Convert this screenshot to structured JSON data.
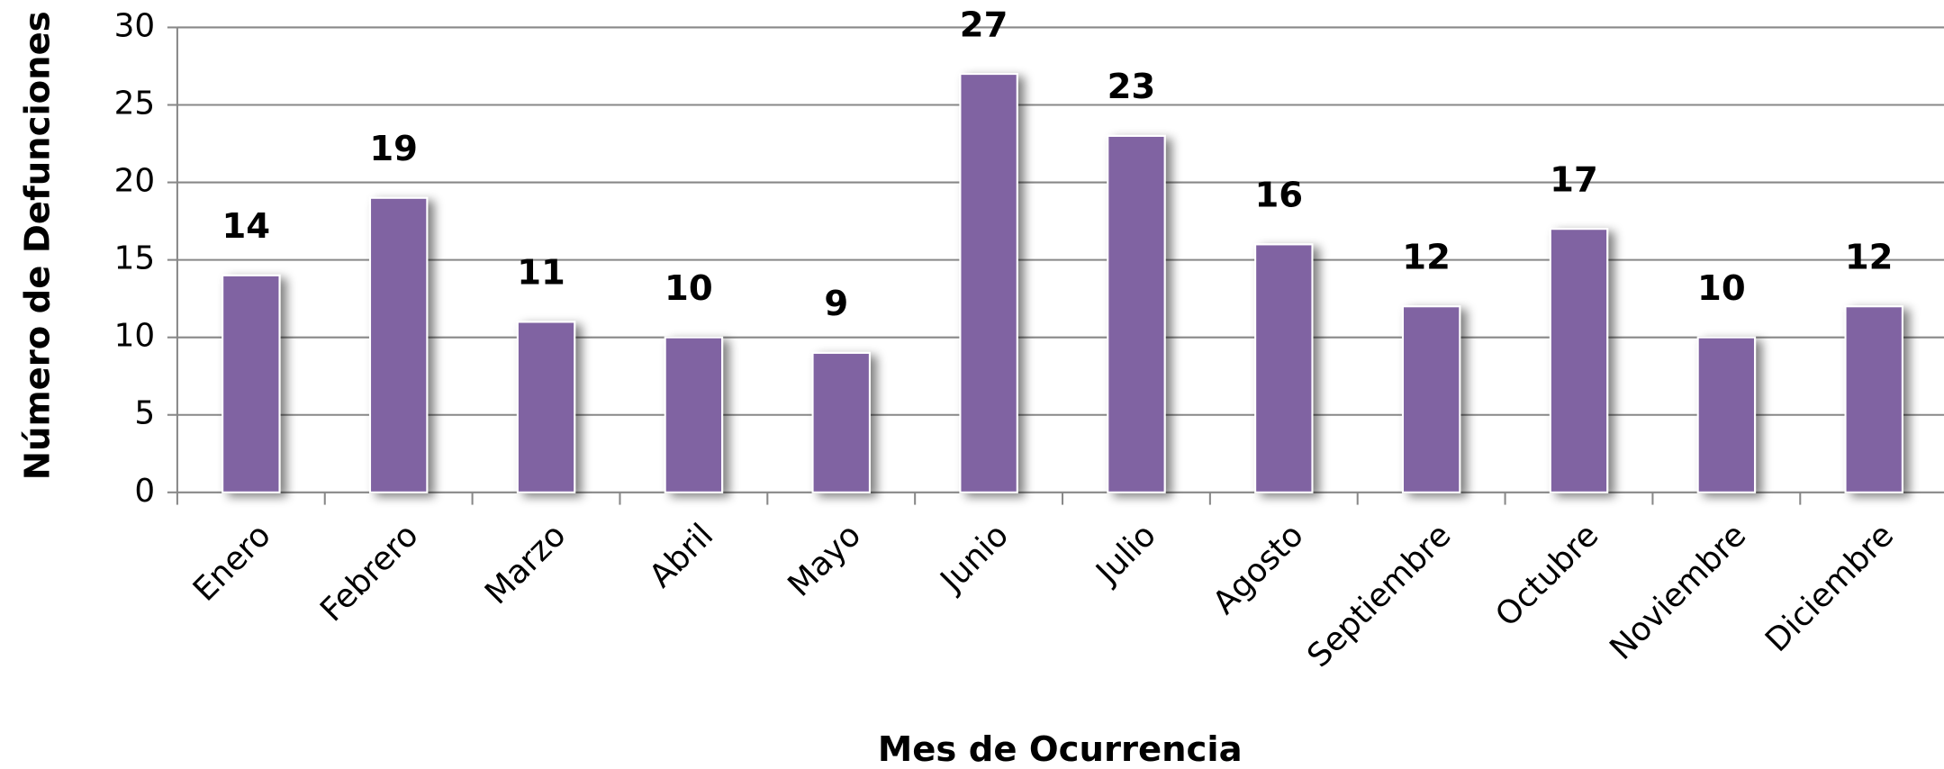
{
  "chart_data": {
    "type": "bar",
    "x_label": "Mes de Ocurrencia",
    "y_label": "Número de Defunciones",
    "categories": [
      "Enero",
      "Febrero",
      "Marzo",
      "Abril",
      "Mayo",
      "Junio",
      "Julio",
      "Agosto",
      "Septiembre",
      "Octubre",
      "Noviembre",
      "Diciembre"
    ],
    "values": [
      14,
      19,
      11,
      10,
      9,
      27,
      23,
      16,
      12,
      17,
      10,
      12
    ],
    "color": "#8064a2",
    "ylim": [
      0,
      30
    ],
    "yticks": [
      0,
      5,
      10,
      15,
      20,
      25,
      30
    ],
    "grid": true
  }
}
